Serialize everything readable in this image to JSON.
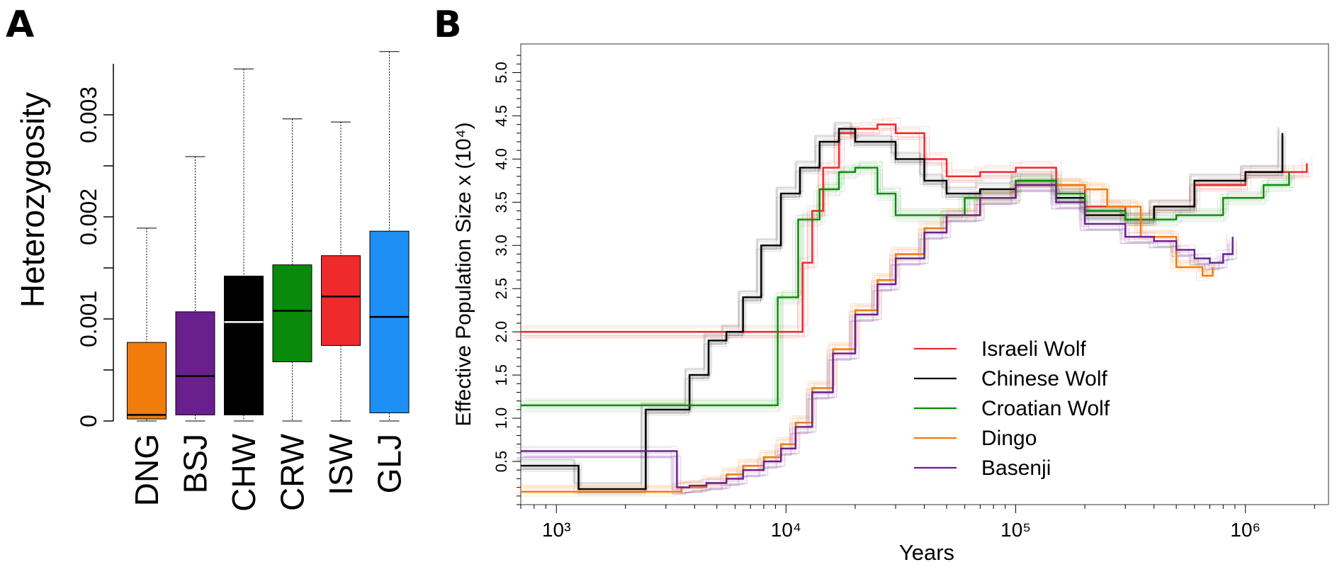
{
  "panel_a": {
    "letter": "A"
  },
  "panel_b": {
    "letter": "B"
  },
  "chart_data": [
    {
      "type": "box",
      "ylabel": "Heterozygosity",
      "xlabel": "",
      "ylim": [
        0,
        0.0035
      ],
      "yticks": [
        {
          "v": 0,
          "label": "0"
        },
        {
          "v": 0.0005,
          "label": ""
        },
        {
          "v": 0.001,
          "label": "0.001"
        },
        {
          "v": 0.0015,
          "label": ""
        },
        {
          "v": 0.002,
          "label": "0.002"
        },
        {
          "v": 0.0025,
          "label": ""
        },
        {
          "v": 0.003,
          "label": "0.003"
        }
      ],
      "categories": [
        "DNG",
        "BSJ",
        "CHW",
        "CRW",
        "ISW",
        "GLJ"
      ],
      "colors": [
        "#f07c0c",
        "#6a1f8e",
        "#000000",
        "#0a8a0a",
        "#ee2a2a",
        "#1e8ff5"
      ],
      "median_colors": [
        "#000000",
        "#000000",
        "#ffffff",
        "#000000",
        "#000000",
        "#000000"
      ],
      "boxes": [
        {
          "min": 0.0,
          "q1": 2e-05,
          "median": 6e-05,
          "q3": 0.00077,
          "max": 0.00189
        },
        {
          "min": 0.0,
          "q1": 6e-05,
          "median": 0.00044,
          "q3": 0.00107,
          "max": 0.00259
        },
        {
          "min": 0.0,
          "q1": 6e-05,
          "median": 0.00097,
          "q3": 0.00142,
          "max": 0.00345
        },
        {
          "min": 0.0,
          "q1": 0.00058,
          "median": 0.00108,
          "q3": 0.00153,
          "max": 0.00296
        },
        {
          "min": 0.0,
          "q1": 0.00074,
          "median": 0.00122,
          "q3": 0.00162,
          "max": 0.00293
        },
        {
          "min": 0.0,
          "q1": 8e-05,
          "median": 0.00102,
          "q3": 0.00186,
          "max": 0.00362
        }
      ]
    },
    {
      "type": "line",
      "xscale": "log",
      "xlim": [
        700,
        2300000
      ],
      "ylim": [
        0,
        5.25
      ],
      "xlabel": "Years",
      "ylabel": "Effective Population Size x (10⁴)",
      "xticks": [
        {
          "v": 1000,
          "label": "10³"
        },
        {
          "v": 10000,
          "label": "10⁴"
        },
        {
          "v": 100000,
          "label": "10⁵"
        },
        {
          "v": 1000000,
          "label": "10⁶"
        }
      ],
      "yticks": [
        "0.5",
        "1.0",
        "1.5",
        "2.0",
        "2.5",
        "3.0",
        "3.5",
        "4.0",
        "4.5",
        "5.0"
      ],
      "legend_position": "bottom-right",
      "series": [
        {
          "name": "Israeli Wolf",
          "color": "#ee2a2a",
          "points": [
            [
              700,
              2.0
            ],
            [
              10800,
              2.0
            ],
            [
              11800,
              2.8
            ],
            [
              13000,
              3.4
            ],
            [
              14500,
              3.9
            ],
            [
              17000,
              4.3
            ],
            [
              20000,
              4.35
            ],
            [
              25000,
              4.4
            ],
            [
              30000,
              4.3
            ],
            [
              40000,
              4.0
            ],
            [
              50000,
              3.8
            ],
            [
              70000,
              3.85
            ],
            [
              100000,
              3.9
            ],
            [
              150000,
              3.7
            ],
            [
              200000,
              3.45
            ],
            [
              300000,
              3.3
            ],
            [
              400000,
              3.45
            ],
            [
              600000,
              3.7
            ],
            [
              1000000,
              3.85
            ],
            [
              1500000,
              3.85
            ],
            [
              1850000,
              3.95
            ]
          ]
        },
        {
          "name": "Chinese Wolf",
          "color": "#000000",
          "points": [
            [
              700,
              0.45
            ],
            [
              1200,
              0.45
            ],
            [
              1250,
              0.18
            ],
            [
              2400,
              0.18
            ],
            [
              2450,
              1.1
            ],
            [
              3700,
              1.1
            ],
            [
              3800,
              1.5
            ],
            [
              4600,
              1.9
            ],
            [
              5500,
              2.0
            ],
            [
              6500,
              2.4
            ],
            [
              7800,
              3.0
            ],
            [
              9500,
              3.6
            ],
            [
              11500,
              3.9
            ],
            [
              14000,
              4.2
            ],
            [
              17000,
              4.35
            ],
            [
              20000,
              4.2
            ],
            [
              30000,
              4.0
            ],
            [
              40000,
              3.75
            ],
            [
              50000,
              3.6
            ],
            [
              70000,
              3.65
            ],
            [
              100000,
              3.75
            ],
            [
              150000,
              3.55
            ],
            [
              200000,
              3.35
            ],
            [
              300000,
              3.3
            ],
            [
              400000,
              3.45
            ],
            [
              600000,
              3.75
            ],
            [
              1000000,
              3.85
            ],
            [
              1300000,
              3.85
            ],
            [
              1450000,
              4.3
            ]
          ]
        },
        {
          "name": "Croatian Wolf",
          "color": "#0a8a0a",
          "points": [
            [
              700,
              1.15
            ],
            [
              9000,
              1.15
            ],
            [
              9200,
              2.4
            ],
            [
              11000,
              2.4
            ],
            [
              11300,
              3.3
            ],
            [
              14000,
              3.65
            ],
            [
              17000,
              3.85
            ],
            [
              20000,
              3.9
            ],
            [
              25000,
              3.6
            ],
            [
              30000,
              3.35
            ],
            [
              40000,
              3.35
            ],
            [
              60000,
              3.55
            ],
            [
              100000,
              3.75
            ],
            [
              150000,
              3.6
            ],
            [
              200000,
              3.4
            ],
            [
              300000,
              3.3
            ],
            [
              500000,
              3.35
            ],
            [
              800000,
              3.55
            ],
            [
              1200000,
              3.7
            ],
            [
              1550000,
              3.85
            ]
          ]
        },
        {
          "name": "Dingo",
          "color": "#f07c0c",
          "points": [
            [
              700,
              0.15
            ],
            [
              2400,
              0.15
            ],
            [
              2900,
              0.15
            ],
            [
              3500,
              0.2
            ],
            [
              4500,
              0.25
            ],
            [
              5500,
              0.35
            ],
            [
              6500,
              0.45
            ],
            [
              8000,
              0.55
            ],
            [
              9500,
              0.7
            ],
            [
              11000,
              0.95
            ],
            [
              13000,
              1.35
            ],
            [
              16000,
              1.8
            ],
            [
              20000,
              2.25
            ],
            [
              25000,
              2.6
            ],
            [
              30000,
              2.9
            ],
            [
              40000,
              3.2
            ],
            [
              50000,
              3.35
            ],
            [
              70000,
              3.55
            ],
            [
              100000,
              3.7
            ],
            [
              150000,
              3.7
            ],
            [
              200000,
              3.65
            ],
            [
              250000,
              3.45
            ],
            [
              350000,
              3.1
            ],
            [
              500000,
              2.75
            ],
            [
              650000,
              2.65
            ],
            [
              720000,
              2.75
            ]
          ]
        },
        {
          "name": "Basenji",
          "color": "#6a1f8e",
          "points": [
            [
              700,
              0.62
            ],
            [
              3300,
              0.62
            ],
            [
              3350,
              0.2
            ],
            [
              3800,
              0.22
            ],
            [
              4500,
              0.25
            ],
            [
              5500,
              0.3
            ],
            [
              6500,
              0.4
            ],
            [
              8000,
              0.5
            ],
            [
              9500,
              0.65
            ],
            [
              11000,
              0.9
            ],
            [
              13000,
              1.3
            ],
            [
              16000,
              1.75
            ],
            [
              20000,
              2.2
            ],
            [
              25000,
              2.55
            ],
            [
              30000,
              2.85
            ],
            [
              40000,
              3.15
            ],
            [
              50000,
              3.35
            ],
            [
              70000,
              3.55
            ],
            [
              100000,
              3.7
            ],
            [
              150000,
              3.5
            ],
            [
              200000,
              3.25
            ],
            [
              300000,
              3.1
            ],
            [
              400000,
              3.05
            ],
            [
              500000,
              2.95
            ],
            [
              600000,
              2.85
            ],
            [
              700000,
              2.8
            ],
            [
              800000,
              2.9
            ],
            [
              880000,
              3.1
            ]
          ]
        }
      ]
    }
  ]
}
